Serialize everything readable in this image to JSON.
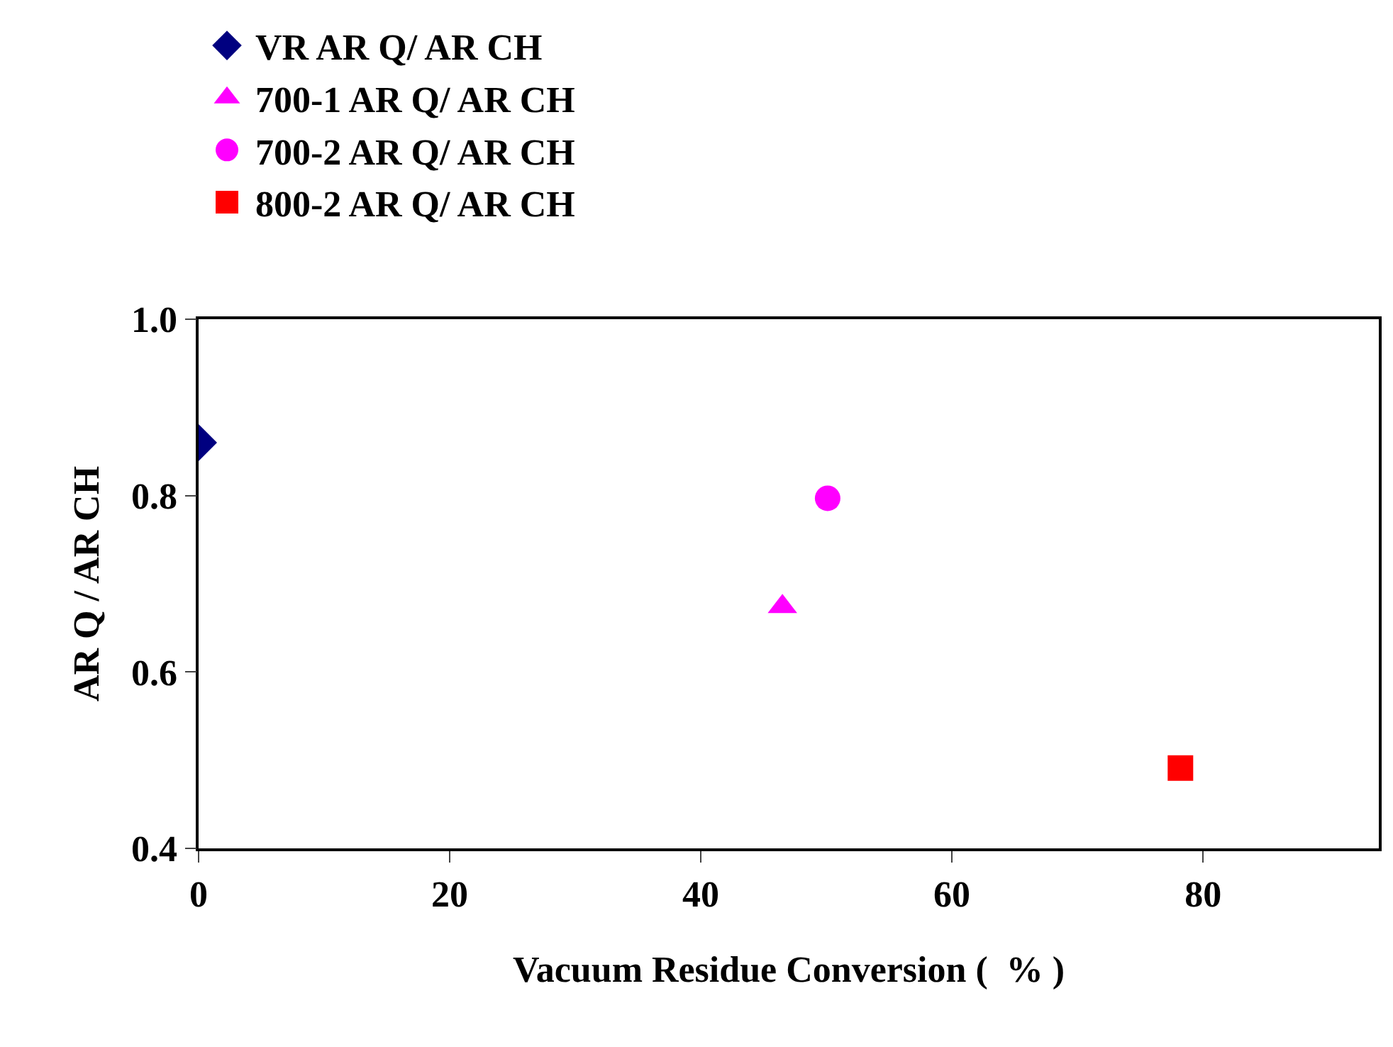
{
  "chart_data": {
    "type": "scatter",
    "xlabel": "Vacuum Residue Conversion (  % )",
    "ylabel": "AR Q / AR CH",
    "xlim": [
      0,
      94
    ],
    "xticks": [
      0,
      20,
      40,
      60,
      80
    ],
    "ylim": [
      0.4,
      1.0
    ],
    "yticks": [
      {
        "value": 0.4,
        "label": "0.4"
      },
      {
        "value": 0.6,
        "label": "0.6"
      },
      {
        "value": 0.8,
        "label": "0.8"
      },
      {
        "value": 1.0,
        "label": "1.0"
      }
    ],
    "legend": "top left",
    "series": [
      {
        "name": "VR AR Q/ AR CH",
        "color": "#000080",
        "marker": "diamond",
        "x": [
          0
        ],
        "values": [
          0.86
        ]
      },
      {
        "name": "700-1 AR Q/ AR CH",
        "color": "#ff00ff",
        "marker": "triangle",
        "x": [
          46.5
        ],
        "values": [
          0.674
        ]
      },
      {
        "name": "700-2 AR Q/ AR CH",
        "color": "#ff00ff",
        "marker": "circle",
        "x": [
          50.1
        ],
        "values": [
          0.797
        ]
      },
      {
        "name": "800-2 AR Q/ AR CH",
        "color": "#ff0000",
        "marker": "square",
        "x": [
          78.2
        ],
        "values": [
          0.491
        ]
      }
    ]
  }
}
